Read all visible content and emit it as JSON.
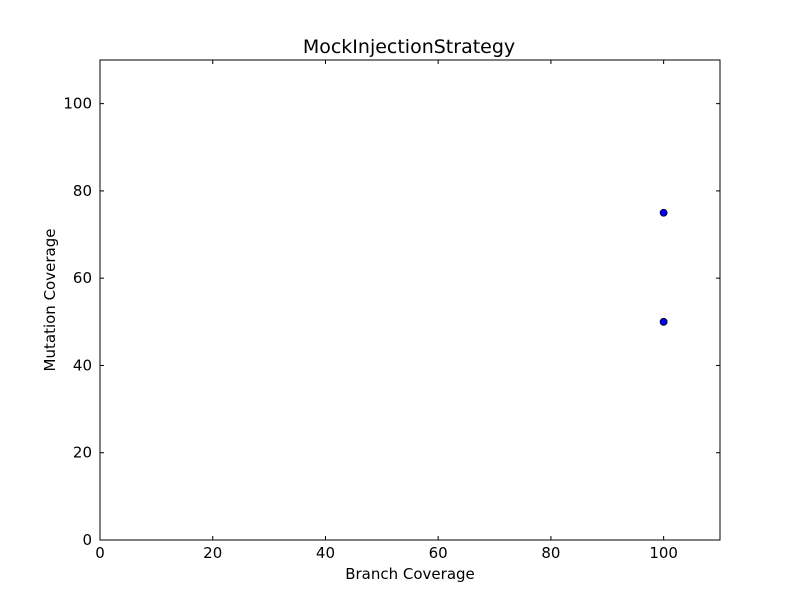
{
  "chart_data": {
    "type": "scatter",
    "title": "MockInjectionStrategy",
    "xlabel": "Branch Coverage",
    "ylabel": "Mutation Coverage",
    "xlim": [
      0,
      110
    ],
    "ylim": [
      0,
      110
    ],
    "xticks": [
      0,
      20,
      40,
      60,
      80,
      100
    ],
    "yticks": [
      0,
      20,
      40,
      60,
      80,
      100
    ],
    "grid": false,
    "series": [
      {
        "color": "#0000ff",
        "points": [
          {
            "x": 100,
            "y": 75
          },
          {
            "x": 100,
            "y": 50
          }
        ]
      }
    ]
  }
}
